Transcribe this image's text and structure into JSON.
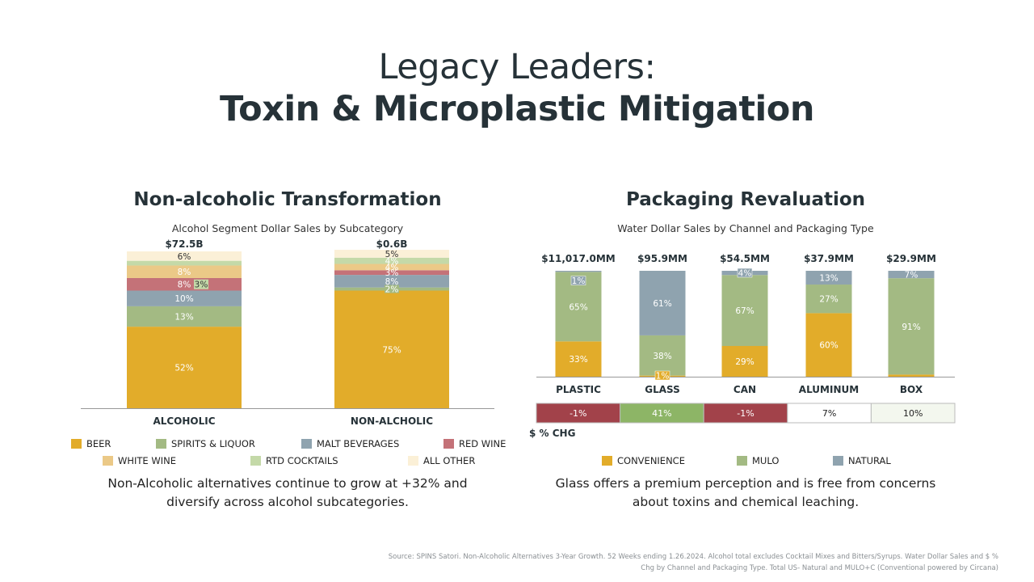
{
  "header": {
    "line1": "Legacy Leaders:",
    "line2": "Toxin & Microplastic Mitigation"
  },
  "left": {
    "title": "Non-alcoholic Transformation",
    "subtitle": "Alcohol Segment Dollar Sales by Subcategory",
    "caption": "Non-Alcoholic alternatives continue to grow at +32% and diversify across alcohol subcategories."
  },
  "right": {
    "title": "Packaging Revaluation",
    "subtitle": "Water Dollar Sales by Channel and Packaging Type",
    "caption": "Glass offers a premium perception and is free from concerns about toxins and chemical leaching.",
    "chg_label": "$ % CHG"
  },
  "source": "Source: SPINS Satori. Non-Alcoholic Alternatives 3-Year Growth. 52 Weeks ending 1.26.2024. Alcohol total excludes Cocktail Mixes and Bitters/Syrups. Water Dollar Sales and $ % Chg by Channel and Packaging Type. Total US- Natural and MULO+C (Conventional powered by Circana)",
  "chart_data": [
    {
      "type": "bar",
      "stacked": true,
      "normalized": true,
      "categories": [
        "ALCOHOLIC",
        "NON-ALCHOLIC"
      ],
      "totals": [
        "$72.5B",
        "$0.6B"
      ],
      "ylim": [
        0,
        100
      ],
      "legend_position": "bottom",
      "series": [
        {
          "name": "BEER",
          "color": "#E2AC2A",
          "values": [
            52,
            75
          ]
        },
        {
          "name": "SPIRITS & LIQUOR",
          "color": "#A3BA83",
          "values": [
            13,
            2
          ]
        },
        {
          "name": "MALT BEVERAGES",
          "color": "#8FA3AF",
          "values": [
            10,
            8
          ]
        },
        {
          "name": "RED WINE",
          "color": "#C47278",
          "values": [
            8,
            3
          ]
        },
        {
          "name": "WHITE WINE",
          "color": "#EBC987",
          "values": [
            8,
            4
          ]
        },
        {
          "name": "RTD COCKTAILS",
          "color": "#C4D9A8",
          "values": [
            3,
            4
          ]
        },
        {
          "name": "ALL OTHER",
          "color": "#FBF0D7",
          "values": [
            6,
            5
          ]
        }
      ]
    },
    {
      "type": "bar",
      "stacked": true,
      "normalized": true,
      "categories": [
        "PLASTIC",
        "GLASS",
        "CAN",
        "ALUMINUM",
        "BOX"
      ],
      "totals": [
        "$11,017.0MM",
        "$95.9MM",
        "$54.5MM",
        "$37.9MM",
        "$29.9MM"
      ],
      "ylim": [
        0,
        100
      ],
      "legend_position": "bottom",
      "series": [
        {
          "name": "CONVENIENCE",
          "color": "#E2AC2A",
          "values": [
            33,
            1,
            29,
            60,
            2
          ],
          "labels": [
            "33%",
            "1%",
            "29%",
            "60%",
            ""
          ]
        },
        {
          "name": "MULO",
          "color": "#A3BA83",
          "values": [
            65,
            38,
            67,
            27,
            91
          ],
          "labels": [
            "65%",
            "38%",
            "67%",
            "27%",
            "91%"
          ]
        },
        {
          "name": "NATURAL",
          "color": "#8FA3AF",
          "values": [
            1,
            61,
            4,
            13,
            7
          ],
          "labels": [
            "1%",
            "61%",
            "4%",
            "13%",
            "7%"
          ]
        }
      ],
      "pct_change": {
        "label": "$ % CHG",
        "values": [
          "-1%",
          "41%",
          "-1%",
          "7%",
          "10%"
        ],
        "colors": [
          "#A2424A",
          "#8DB566",
          "#A2424A",
          "#FFFFFF",
          "#F3F7EE"
        ],
        "text_colors": [
          "#ffffff",
          "#ffffff",
          "#ffffff",
          "#222222",
          "#222222"
        ]
      }
    }
  ]
}
